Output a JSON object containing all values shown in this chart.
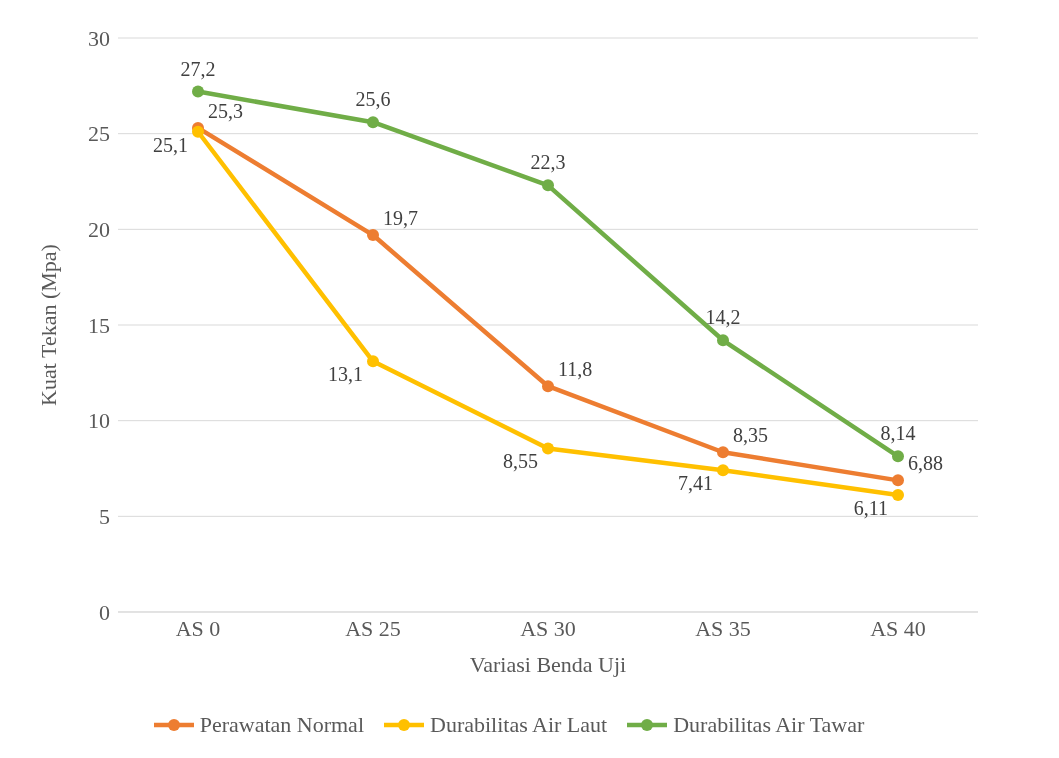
{
  "chart_data": {
    "type": "line",
    "xlabel": "Variasi Benda Uji",
    "ylabel": "Kuat Tekan (Mpa)",
    "categories": [
      "AS 0",
      "AS 25",
      "AS 30",
      "AS 35",
      "AS 40"
    ],
    "series": [
      {
        "name": "Perawatan Normal",
        "color": "#ed7d31",
        "values": [
          25.3,
          19.7,
          11.8,
          8.35,
          6.88
        ],
        "value_labels": [
          "25,3",
          "19,7",
          "11,8",
          "8,35",
          "6,88"
        ]
      },
      {
        "name": "Durabilitas Air Laut",
        "color": "#ffc000",
        "values": [
          25.1,
          13.1,
          8.55,
          7.41,
          6.11
        ],
        "value_labels": [
          "25,1",
          "13,1",
          "8,55",
          "7,41",
          "6,11"
        ]
      },
      {
        "name": "Durabilitas Air Tawar",
        "color": "#70ad47",
        "values": [
          27.2,
          25.6,
          22.3,
          14.2,
          8.14
        ],
        "value_labels": [
          "27,2",
          "25,6",
          "22,3",
          "14,2",
          "8,14"
        ]
      }
    ],
    "ylim": [
      0,
      30
    ],
    "yticks": [
      0,
      5,
      10,
      15,
      20,
      25,
      30
    ],
    "grid": "y",
    "legend": "bottom",
    "marker": "circle",
    "line_style": "solid"
  }
}
